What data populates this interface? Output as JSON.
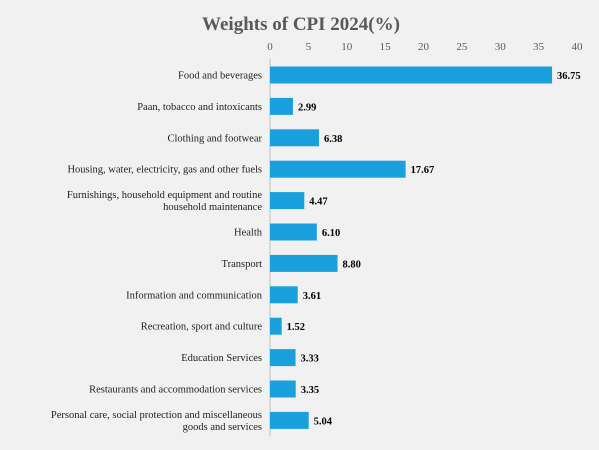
{
  "chart_data": {
    "type": "bar",
    "orientation": "horizontal",
    "title": "Weights of CPI 2024(%)",
    "xlabel": "",
    "ylabel": "",
    "xlim": [
      0,
      40
    ],
    "ticks": [
      "0",
      "5",
      "10",
      "15",
      "20",
      "25",
      "30",
      "35",
      "40"
    ],
    "grid": false,
    "legend": "none",
    "bar_color": "#1aa0dc",
    "categories": [
      [
        "Food and beverages"
      ],
      [
        "Paan, tobacco and intoxicants"
      ],
      [
        "Clothing and footwear"
      ],
      [
        "Housing, water, electricity, gas and other fuels"
      ],
      [
        "Furnishings, household equipment and routine",
        "household maintenance"
      ],
      [
        "Health"
      ],
      [
        "Transport"
      ],
      [
        "Information and communication"
      ],
      [
        "Recreation, sport and culture"
      ],
      [
        "Education Services"
      ],
      [
        "Restaurants and accommodation services"
      ],
      [
        "Personal care, social protection and miscellaneous",
        "goods and services"
      ]
    ],
    "values": [
      36.75,
      2.99,
      6.38,
      17.67,
      4.47,
      6.1,
      8.8,
      3.61,
      1.52,
      3.33,
      3.35,
      5.04
    ],
    "value_labels": [
      "36.75",
      "2.99",
      "6.38",
      "17.67",
      "4.47",
      "6.10",
      "8.80",
      "3.61",
      "1.52",
      "3.33",
      "3.35",
      "5.04"
    ]
  }
}
